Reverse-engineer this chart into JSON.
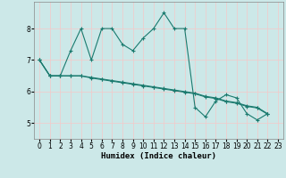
{
  "xlabel": "Humidex (Indice chaleur)",
  "background_color": "#cce8e8",
  "grid_color": "#f5c8c8",
  "line_color": "#1a7a6e",
  "marker": "+",
  "xlim": [
    -0.5,
    23.5
  ],
  "ylim": [
    4.5,
    8.85
  ],
  "yticks": [
    5,
    6,
    7,
    8
  ],
  "xticks": [
    0,
    1,
    2,
    3,
    4,
    5,
    6,
    7,
    8,
    9,
    10,
    11,
    12,
    13,
    14,
    15,
    16,
    17,
    18,
    19,
    20,
    21,
    22,
    23
  ],
  "x_values": [
    0,
    1,
    2,
    3,
    4,
    5,
    6,
    7,
    8,
    9,
    10,
    11,
    12,
    13,
    14,
    15,
    16,
    17,
    18,
    19,
    20,
    21,
    22
  ],
  "series": [
    [
      7.0,
      6.5,
      6.5,
      7.3,
      8.0,
      7.0,
      8.0,
      8.0,
      7.5,
      7.3,
      7.7,
      8.0,
      8.5,
      8.0,
      8.0,
      5.5,
      5.2,
      5.7,
      5.9,
      5.8,
      5.3,
      5.1,
      5.3
    ],
    [
      7.0,
      6.5,
      6.5,
      6.5,
      6.5,
      6.45,
      6.4,
      6.35,
      6.3,
      6.25,
      6.2,
      6.15,
      6.1,
      6.05,
      6.0,
      5.95,
      5.85,
      5.8,
      5.7,
      5.65,
      5.55,
      5.5,
      5.3
    ],
    [
      7.0,
      6.5,
      6.5,
      6.5,
      6.5,
      6.43,
      6.38,
      6.33,
      6.28,
      6.23,
      6.18,
      6.13,
      6.08,
      6.03,
      5.98,
      5.93,
      5.83,
      5.78,
      5.68,
      5.63,
      5.53,
      5.48,
      5.28
    ]
  ]
}
